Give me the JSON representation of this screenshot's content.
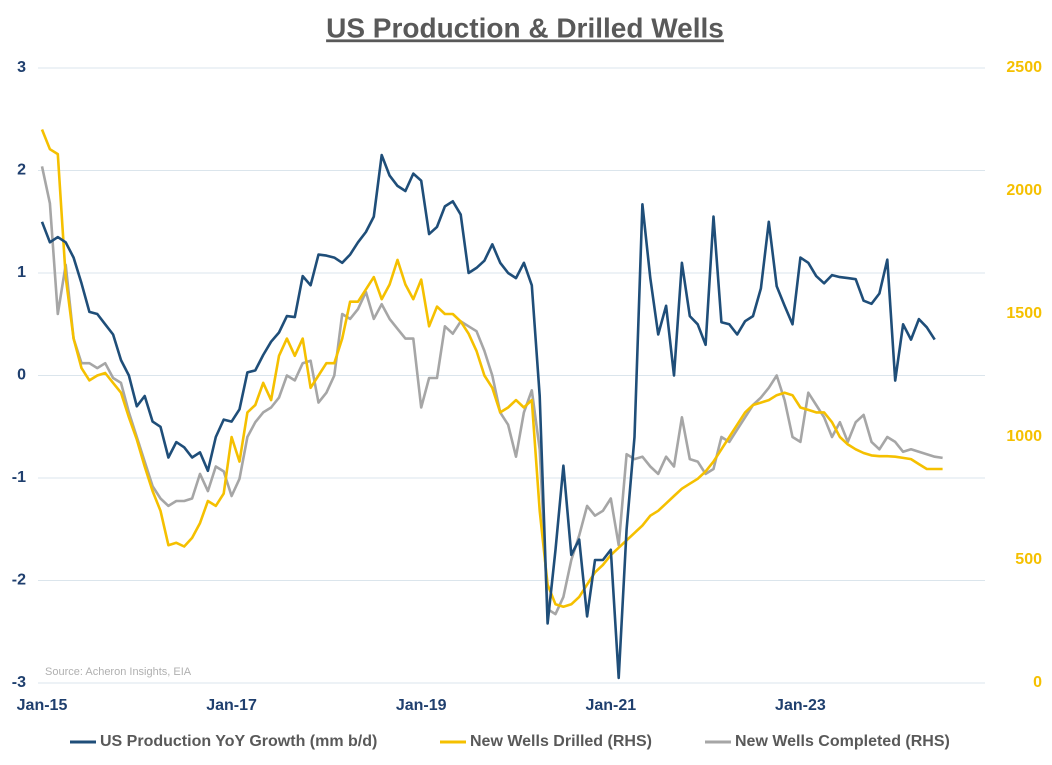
{
  "chart_data": {
    "type": "line",
    "title": "US Production & Drilled Wells",
    "annotation": "Source: Acheron Insights, EIA",
    "categories": [
      "Jan-15",
      null,
      null,
      null,
      null,
      null,
      null,
      null,
      null,
      null,
      null,
      null,
      null,
      null,
      null,
      null,
      null,
      null,
      null,
      null,
      null,
      null,
      null,
      null,
      "Jan-17",
      null,
      null,
      null,
      null,
      null,
      null,
      null,
      null,
      null,
      null,
      null,
      null,
      null,
      null,
      null,
      null,
      null,
      null,
      null,
      null,
      null,
      null,
      null,
      "Jan-19",
      null,
      null,
      null,
      null,
      null,
      null,
      null,
      null,
      null,
      null,
      null,
      null,
      null,
      null,
      null,
      null,
      null,
      null,
      null,
      null,
      null,
      null,
      null,
      "Jan-21",
      null,
      null,
      null,
      null,
      null,
      null,
      null,
      null,
      null,
      null,
      null,
      null,
      null,
      null,
      null,
      null,
      null,
      null,
      null,
      null,
      null,
      null,
      null,
      "Jan-23",
      null,
      null,
      null,
      null,
      null,
      null,
      null,
      null,
      null,
      null,
      null,
      null,
      null,
      null,
      null,
      null,
      null,
      null
    ],
    "series": [
      {
        "name": "US Production YoY Growth (mm b/d)",
        "color": "#1f4e79",
        "values": [
          1.5,
          1.3,
          1.35,
          1.3,
          1.15,
          0.9,
          0.62,
          0.6,
          0.5,
          0.4,
          0.15,
          0.0,
          -0.3,
          -0.2,
          -0.45,
          -0.5,
          -0.8,
          -0.65,
          -0.7,
          -0.8,
          -0.75,
          -0.93,
          -0.6,
          -0.43,
          -0.45,
          -0.33,
          0.03,
          0.05,
          0.2,
          0.33,
          0.42,
          0.58,
          0.57,
          0.97,
          0.88,
          1.18,
          1.17,
          1.15,
          1.1,
          1.18,
          1.3,
          1.4,
          1.55,
          2.15,
          1.95,
          1.85,
          1.8,
          1.97,
          1.9,
          1.38,
          1.45,
          1.65,
          1.7,
          1.57,
          1.0,
          1.05,
          1.12,
          1.28,
          1.1,
          1.0,
          0.95,
          1.1,
          0.88,
          -0.2,
          -2.42,
          -1.7,
          -0.88,
          -1.75,
          -1.6,
          -2.35,
          -1.8,
          -1.8,
          -1.7,
          -2.95,
          -1.5,
          -0.6,
          1.67,
          0.95,
          0.4,
          0.68,
          0.0,
          1.1,
          0.58,
          0.5,
          0.3,
          1.55,
          0.52,
          0.5,
          0.4,
          0.53,
          0.58,
          0.85,
          1.5,
          0.87,
          0.68,
          0.5,
          1.15,
          1.1,
          0.97,
          0.9,
          0.98,
          0.96,
          0.95,
          0.94,
          0.73,
          0.7,
          0.8,
          1.13,
          -0.05,
          0.5,
          0.35,
          0.55,
          0.47,
          0.35,
          null
        ]
      },
      {
        "name": "New Wells Drilled (RHS)",
        "color": "#f5c000",
        "axis": "y2",
        "values": [
          2250,
          2170,
          2150,
          1650,
          1400,
          1280,
          1230,
          1250,
          1260,
          1220,
          1180,
          1080,
          990,
          880,
          780,
          700,
          560,
          570,
          555,
          590,
          650,
          740,
          720,
          770,
          1000,
          900,
          1100,
          1130,
          1220,
          1150,
          1330,
          1400,
          1330,
          1400,
          1200,
          1250,
          1300,
          1300,
          1400,
          1550,
          1550,
          1600,
          1650,
          1560,
          1620,
          1720,
          1620,
          1560,
          1640,
          1450,
          1530,
          1500,
          1500,
          1470,
          1420,
          1350,
          1250,
          1200,
          1100,
          1120,
          1150,
          1120,
          1150,
          700,
          400,
          320,
          310,
          320,
          350,
          400,
          450,
          480,
          520,
          550,
          580,
          610,
          640,
          680,
          700,
          730,
          760,
          790,
          810,
          830,
          860,
          900,
          950,
          1000,
          1050,
          1100,
          1130,
          1140,
          1150,
          1170,
          1180,
          1170,
          1120,
          1110,
          1100,
          1100,
          1060,
          1000,
          970,
          950,
          935,
          925,
          922,
          922,
          920,
          915,
          910,
          890,
          870,
          870,
          870
        ]
      },
      {
        "name": "New Wells Completed (RHS)",
        "color": "#a6a6a6",
        "axis": "y2",
        "values": [
          2100,
          1950,
          1500,
          1700,
          1400,
          1300,
          1300,
          1280,
          1300,
          1240,
          1220,
          1100,
          1000,
          900,
          800,
          750,
          720,
          740,
          740,
          750,
          850,
          780,
          880,
          860,
          760,
          830,
          1000,
          1060,
          1100,
          1120,
          1160,
          1250,
          1230,
          1300,
          1310,
          1140,
          1180,
          1250,
          1500,
          1480,
          1520,
          1590,
          1480,
          1540,
          1480,
          1440,
          1400,
          1400,
          1120,
          1240,
          1240,
          1450,
          1420,
          1470,
          1450,
          1430,
          1350,
          1250,
          1100,
          1050,
          920,
          1100,
          1190,
          950,
          300,
          280,
          350,
          500,
          600,
          720,
          680,
          700,
          750,
          560,
          930,
          910,
          920,
          880,
          850,
          920,
          880,
          1080,
          910,
          900,
          850,
          870,
          1000,
          980,
          1030,
          1080,
          1130,
          1160,
          1200,
          1250,
          1150,
          1000,
          980,
          1180,
          1130,
          1080,
          1000,
          1060,
          980,
          1060,
          1090,
          980,
          950,
          1000,
          980,
          940,
          950,
          940,
          930,
          920,
          915
        ]
      }
    ],
    "ylim": [
      -3,
      3
    ],
    "yticks": [
      -3,
      -2,
      -1,
      0,
      1,
      2,
      3
    ],
    "y2lim": [
      0,
      2500
    ],
    "y2ticks": [
      0,
      500,
      1000,
      1500,
      2000,
      2500
    ],
    "grid": true,
    "legend": "bottom"
  }
}
